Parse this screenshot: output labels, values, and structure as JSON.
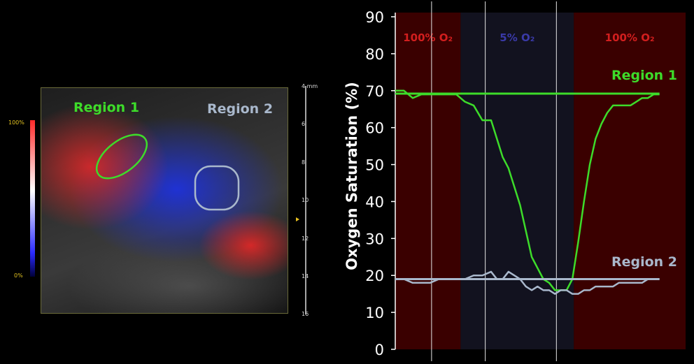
{
  "image_panel": {
    "region1_label": "Region 1",
    "region2_label": "Region 2",
    "colorbar_max": "100%",
    "colorbar_min": "0%",
    "depth_ticks": [
      "4 mm",
      "6",
      "8",
      "10",
      "12",
      "14",
      "16"
    ],
    "colors": {
      "region1": "#3ddc2a",
      "region2": "#a9b8cc"
    }
  },
  "chart_data": {
    "type": "line",
    "xlabel": "",
    "ylabel": "Oxygen Saturation (%)",
    "ylim": [
      0,
      90
    ],
    "y_ticks": [
      0,
      10,
      20,
      30,
      40,
      50,
      60,
      70,
      80,
      90
    ],
    "grid": false,
    "bands": [
      {
        "label": "100% O₂",
        "start": 0,
        "end": 22.5,
        "color": "#3a0000",
        "label_color": "#d21e1e"
      },
      {
        "label": "5% O₂",
        "start": 22.5,
        "end": 61.5,
        "color": "#12121f",
        "label_color": "#3a3aa8"
      },
      {
        "label": "100% O₂",
        "start": 61.5,
        "end": 100,
        "color": "#3a0000",
        "label_color": "#d21e1e"
      }
    ],
    "vlines": [
      12.5,
      31,
      55.5
    ],
    "series": [
      {
        "name": "Region 1",
        "color": "#3ddc2a",
        "x": [
          0,
          3,
          6,
          9,
          12,
          15,
          18,
          21,
          24,
          27,
          30,
          33,
          35,
          37,
          39,
          41,
          43,
          45,
          47,
          49,
          51,
          53,
          55,
          57,
          59,
          61,
          63,
          65,
          67,
          69,
          71,
          73,
          75,
          77,
          79,
          81,
          83,
          85,
          87,
          89,
          91
        ],
        "y": [
          70,
          70,
          68,
          69,
          69,
          69,
          69,
          69,
          67,
          66,
          62,
          62,
          57,
          52,
          49,
          44,
          39,
          32,
          25,
          22,
          19,
          18,
          16,
          16,
          16,
          19,
          29,
          40,
          50,
          57,
          61,
          64,
          66,
          66,
          66,
          66,
          67,
          68,
          68,
          69,
          69
        ],
        "reference": 69.2
      },
      {
        "name": "Region 2",
        "color": "#a9b8cc",
        "x": [
          0,
          3,
          6,
          9,
          12,
          15,
          18,
          21,
          24,
          27,
          30,
          33,
          35,
          37,
          39,
          41,
          43,
          45,
          47,
          49,
          51,
          53,
          55,
          57,
          59,
          61,
          63,
          65,
          67,
          69,
          71,
          73,
          75,
          77,
          79,
          81,
          83,
          85,
          87,
          89,
          91
        ],
        "y": [
          19,
          19,
          18,
          18,
          18,
          19,
          19,
          19,
          19,
          20,
          20,
          21,
          19,
          19,
          21,
          20,
          19,
          17,
          16,
          17,
          16,
          16,
          15,
          16,
          16,
          15,
          15,
          16,
          16,
          17,
          17,
          17,
          17,
          18,
          18,
          18,
          18,
          18,
          19,
          19,
          19
        ],
        "reference": 19.0
      }
    ],
    "annotations": [
      "Region 1",
      "Region 2"
    ]
  }
}
